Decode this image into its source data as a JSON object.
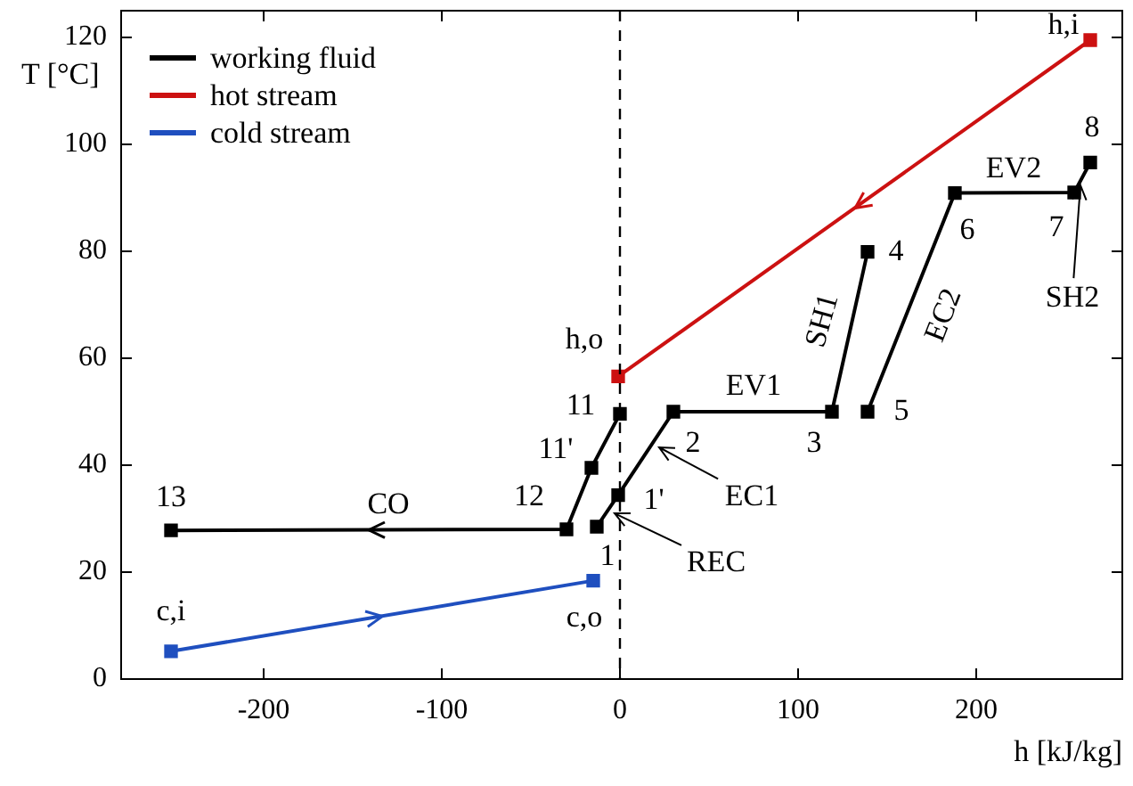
{
  "chart_data": {
    "type": "line",
    "xlabel": "h [kJ/kg]",
    "ylabel": "T [°C]",
    "xlim": [
      -280,
      282
    ],
    "ylim": [
      0,
      125
    ],
    "xticks": [
      -200,
      -100,
      0,
      100,
      200
    ],
    "yticks": [
      0,
      20,
      40,
      60,
      80,
      100,
      120
    ],
    "grid": false,
    "legend": "top left",
    "marker": "square",
    "line_style": "solid",
    "series": [
      {
        "name": "working fluid",
        "color": "#000000",
        "x": [
          -13,
          -1,
          30,
          119,
          139,
          null,
          139,
          188,
          255,
          264,
          null,
          0,
          -16,
          -30,
          -252
        ],
        "values": [
          28.5,
          34.4,
          50,
          50,
          79.9,
          null,
          50,
          90.9,
          91,
          96.6,
          null,
          49.6,
          39.5,
          28,
          27.8
        ]
      },
      {
        "name": "hot stream",
        "color": "#cc1111",
        "x": [
          264,
          -1
        ],
        "values": [
          119.5,
          56.6
        ]
      },
      {
        "name": "cold stream",
        "color": "#1f4fbf",
        "x": [
          -252,
          -15
        ],
        "values": [
          5.2,
          18.4
        ]
      }
    ],
    "ref_lines": [
      {
        "axis": "x",
        "value": 0,
        "color": "#000000",
        "line_style": "dashed"
      }
    ],
    "annotations": [
      {
        "text": "1",
        "x": -13,
        "y": 28.5
      },
      {
        "text": "1'",
        "x": -1,
        "y": 34.4
      },
      {
        "text": "2",
        "x": 30,
        "y": 50
      },
      {
        "text": "3",
        "x": 119,
        "y": 50
      },
      {
        "text": "4",
        "x": 139,
        "y": 79.9
      },
      {
        "text": "5",
        "x": 139,
        "y": 50
      },
      {
        "text": "6",
        "x": 188,
        "y": 90.9
      },
      {
        "text": "7",
        "x": 255,
        "y": 91
      },
      {
        "text": "8",
        "x": 264,
        "y": 96.6
      },
      {
        "text": "11",
        "x": 0,
        "y": 49.6
      },
      {
        "text": "11'",
        "x": -16,
        "y": 39.5
      },
      {
        "text": "12",
        "x": -30,
        "y": 28
      },
      {
        "text": "13",
        "x": -252,
        "y": 27.8
      },
      {
        "text": "h,o",
        "x": -1,
        "y": 56.6
      },
      {
        "text": "h,i",
        "x": 264,
        "y": 119.5
      },
      {
        "text": "c,i",
        "x": -252,
        "y": 5.2
      },
      {
        "text": "c,o",
        "x": -15,
        "y": 18.4
      },
      {
        "text": "EV1",
        "x": 75,
        "y": 50
      },
      {
        "text": "CO",
        "x": -130,
        "y": 27.9
      },
      {
        "text": "SH1",
        "x": 129,
        "y": 65
      },
      {
        "text": "EC2",
        "x": 161,
        "y": 68
      },
      {
        "text": "EV2",
        "x": 221,
        "y": 91
      },
      {
        "text": "EC1",
        "x": 18,
        "y": 44
      },
      {
        "text": "REC",
        "x": -7,
        "y": 31.4
      },
      {
        "text": "SH2",
        "x": 259,
        "y": 93.8
      }
    ]
  }
}
